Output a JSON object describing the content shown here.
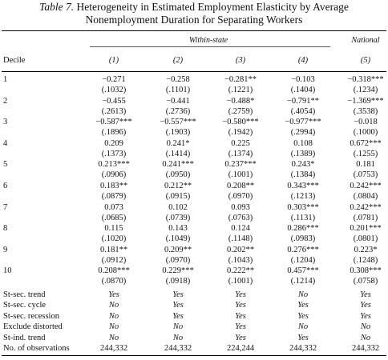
{
  "title": {
    "label": "Table 7.",
    "line1": "Heterogeneity in Estimated Employment Elasticity by Average",
    "line2": "Nonemployment Duration for Separating Workers"
  },
  "groups": {
    "within": "Within-state",
    "national": "National"
  },
  "header": {
    "decile": "Decile",
    "cols": [
      "(1)",
      "(2)",
      "(3)",
      "(4)",
      "(5)"
    ]
  },
  "rows": [
    {
      "decile": "1",
      "est": [
        "−0.271",
        "−0.258",
        "−0.281**",
        "−0.103",
        "−0.318***"
      ],
      "se": [
        "(.1032)",
        "(.1101)",
        "(.1221)",
        "(.1404)",
        "(.1234)"
      ]
    },
    {
      "decile": "2",
      "est": [
        "−0.455",
        "−0.441",
        "−0.488*",
        "−0.791**",
        "−1.369***"
      ],
      "se": [
        "(.2613)",
        "(.2736)",
        "(.2759)",
        "(.4054)",
        "(.3538)"
      ]
    },
    {
      "decile": "3",
      "est": [
        "−0.587***",
        "−0.557***",
        "−0.580***",
        "−0.977***",
        "−0.018"
      ],
      "se": [
        "(.1896)",
        "(.1903)",
        "(.1942)",
        "(.2994)",
        "(.1000)"
      ]
    },
    {
      "decile": "4",
      "est": [
        "0.209",
        "0.241*",
        "0.225",
        "0.108",
        "0.672***"
      ],
      "se": [
        "(.1373)",
        "(.1414)",
        "(.1374)",
        "(.1389)",
        "(.1255)"
      ]
    },
    {
      "decile": "5",
      "est": [
        "0.213***",
        "0.241***",
        "0.237***",
        "0.243*",
        "0.181"
      ],
      "se": [
        "(.0906)",
        "(.0950)",
        "(.1001)",
        "(.1384)",
        "(.0753)"
      ]
    },
    {
      "decile": "6",
      "est": [
        "0.183**",
        "0.212**",
        "0.208**",
        "0.343***",
        "0.242***"
      ],
      "se": [
        "(.0879)",
        "(.0915)",
        "(.0970)",
        "(.1213)",
        "(.0804)"
      ]
    },
    {
      "decile": "7",
      "est": [
        "0.073",
        "0.102",
        "0.093",
        "0.303***",
        "0.242***"
      ],
      "se": [
        "(.0685)",
        "(.0739)",
        "(.0763)",
        "(.1131)",
        "(.0781)"
      ]
    },
    {
      "decile": "8",
      "est": [
        "0.115",
        "0.143",
        "0.124",
        "0.286***",
        "0.201***"
      ],
      "se": [
        "(.1020)",
        "(.1049)",
        "(.1148)",
        "(.0983)",
        "(.0801)"
      ]
    },
    {
      "decile": "9",
      "est": [
        "0.181**",
        "0.209**",
        "0.202**",
        "0.276***",
        "0.223*"
      ],
      "se": [
        "(.0912)",
        "(.0970)",
        "(.1043)",
        "(.1204)",
        "(.1248)"
      ]
    },
    {
      "decile": "10",
      "est": [
        "0.208***",
        "0.229***",
        "0.222**",
        "0.457***",
        "0.308***"
      ],
      "se": [
        "(.0870)",
        "(.0918)",
        "(.1001)",
        "(.1214)",
        "(.0758)"
      ]
    }
  ],
  "controls": [
    {
      "label": "St-sec. trend",
      "vals": [
        "Yes",
        "Yes",
        "Yes",
        "No",
        "Yes"
      ]
    },
    {
      "label": "St-sec. cycle",
      "vals": [
        "No",
        "Yes",
        "Yes",
        "Yes",
        "Yes"
      ]
    },
    {
      "label": "St-sec. recession",
      "vals": [
        "No",
        "Yes",
        "Yes",
        "Yes",
        "Yes"
      ]
    },
    {
      "label": "Exclude distorted",
      "vals": [
        "No",
        "No",
        "Yes",
        "No",
        "No"
      ]
    },
    {
      "label": "St-ind. trend",
      "vals": [
        "No",
        "No",
        "Yes",
        "Yes",
        "No"
      ]
    }
  ],
  "observations": {
    "label": "No. of observations",
    "vals": [
      "244,332",
      "244,332",
      "224,244",
      "244,332",
      "244,332"
    ]
  }
}
